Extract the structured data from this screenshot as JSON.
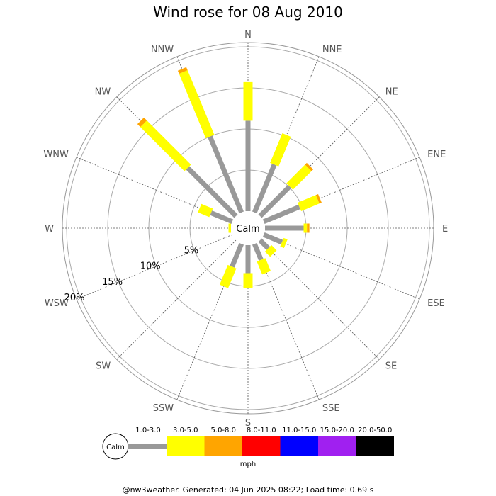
{
  "chart_data": {
    "type": "windrose",
    "title": "Wind rose for 08 Aug 2010",
    "directions": [
      "N",
      "NNE",
      "NE",
      "ENE",
      "E",
      "ESE",
      "SE",
      "SSE",
      "S",
      "SSW",
      "SW",
      "WSW",
      "W",
      "WNW",
      "NW",
      "NNW"
    ],
    "rings_pct": [
      5,
      10,
      15,
      20
    ],
    "ring_labels": [
      "5%",
      "10%",
      "15%",
      "20%"
    ],
    "calm_label": "Calm",
    "speed_bins": [
      {
        "label": "1.0-3.0",
        "color": "#999999"
      },
      {
        "label": "3.0-5.0",
        "color": "#ffff00"
      },
      {
        "label": "5.0-8.0",
        "color": "#ffa500"
      },
      {
        "label": "8.0-11.0",
        "color": "#ff0000"
      },
      {
        "label": "11.0-15.0",
        "color": "#0000ff"
      },
      {
        "label": "15.0-20.0",
        "color": "#a020f0"
      },
      {
        "label": "20.0-50.0",
        "color": "#000000"
      }
    ],
    "speed_unit": "mph",
    "series": [
      {
        "name": "1.0-3.0",
        "values": [
          11.0,
          6.3,
          5.1,
          4.7,
          4.7,
          2.4,
          1.4,
          2.1,
          3.4,
          3.0,
          0,
          0,
          0,
          2.8,
          8.3,
          10.0
        ]
      },
      {
        "name": "3.0-5.0",
        "values": [
          4.7,
          3.9,
          3.2,
          2.4,
          0.4,
          0.5,
          0.9,
          1.7,
          1.8,
          2.6,
          0,
          0,
          0.3,
          1.5,
          7.6,
          8.5
        ]
      },
      {
        "name": "5.0-8.0",
        "values": [
          0,
          0,
          0.3,
          0.3,
          0.3,
          0,
          0,
          0,
          0,
          0,
          0,
          0,
          0,
          0,
          0.5,
          0.4
        ]
      }
    ]
  },
  "legend": {
    "calm": "Calm",
    "unit": "mph"
  },
  "footer": "@nw3weather. Generated: 04 Jun 2025 08:22; Load time: 0.69 s"
}
